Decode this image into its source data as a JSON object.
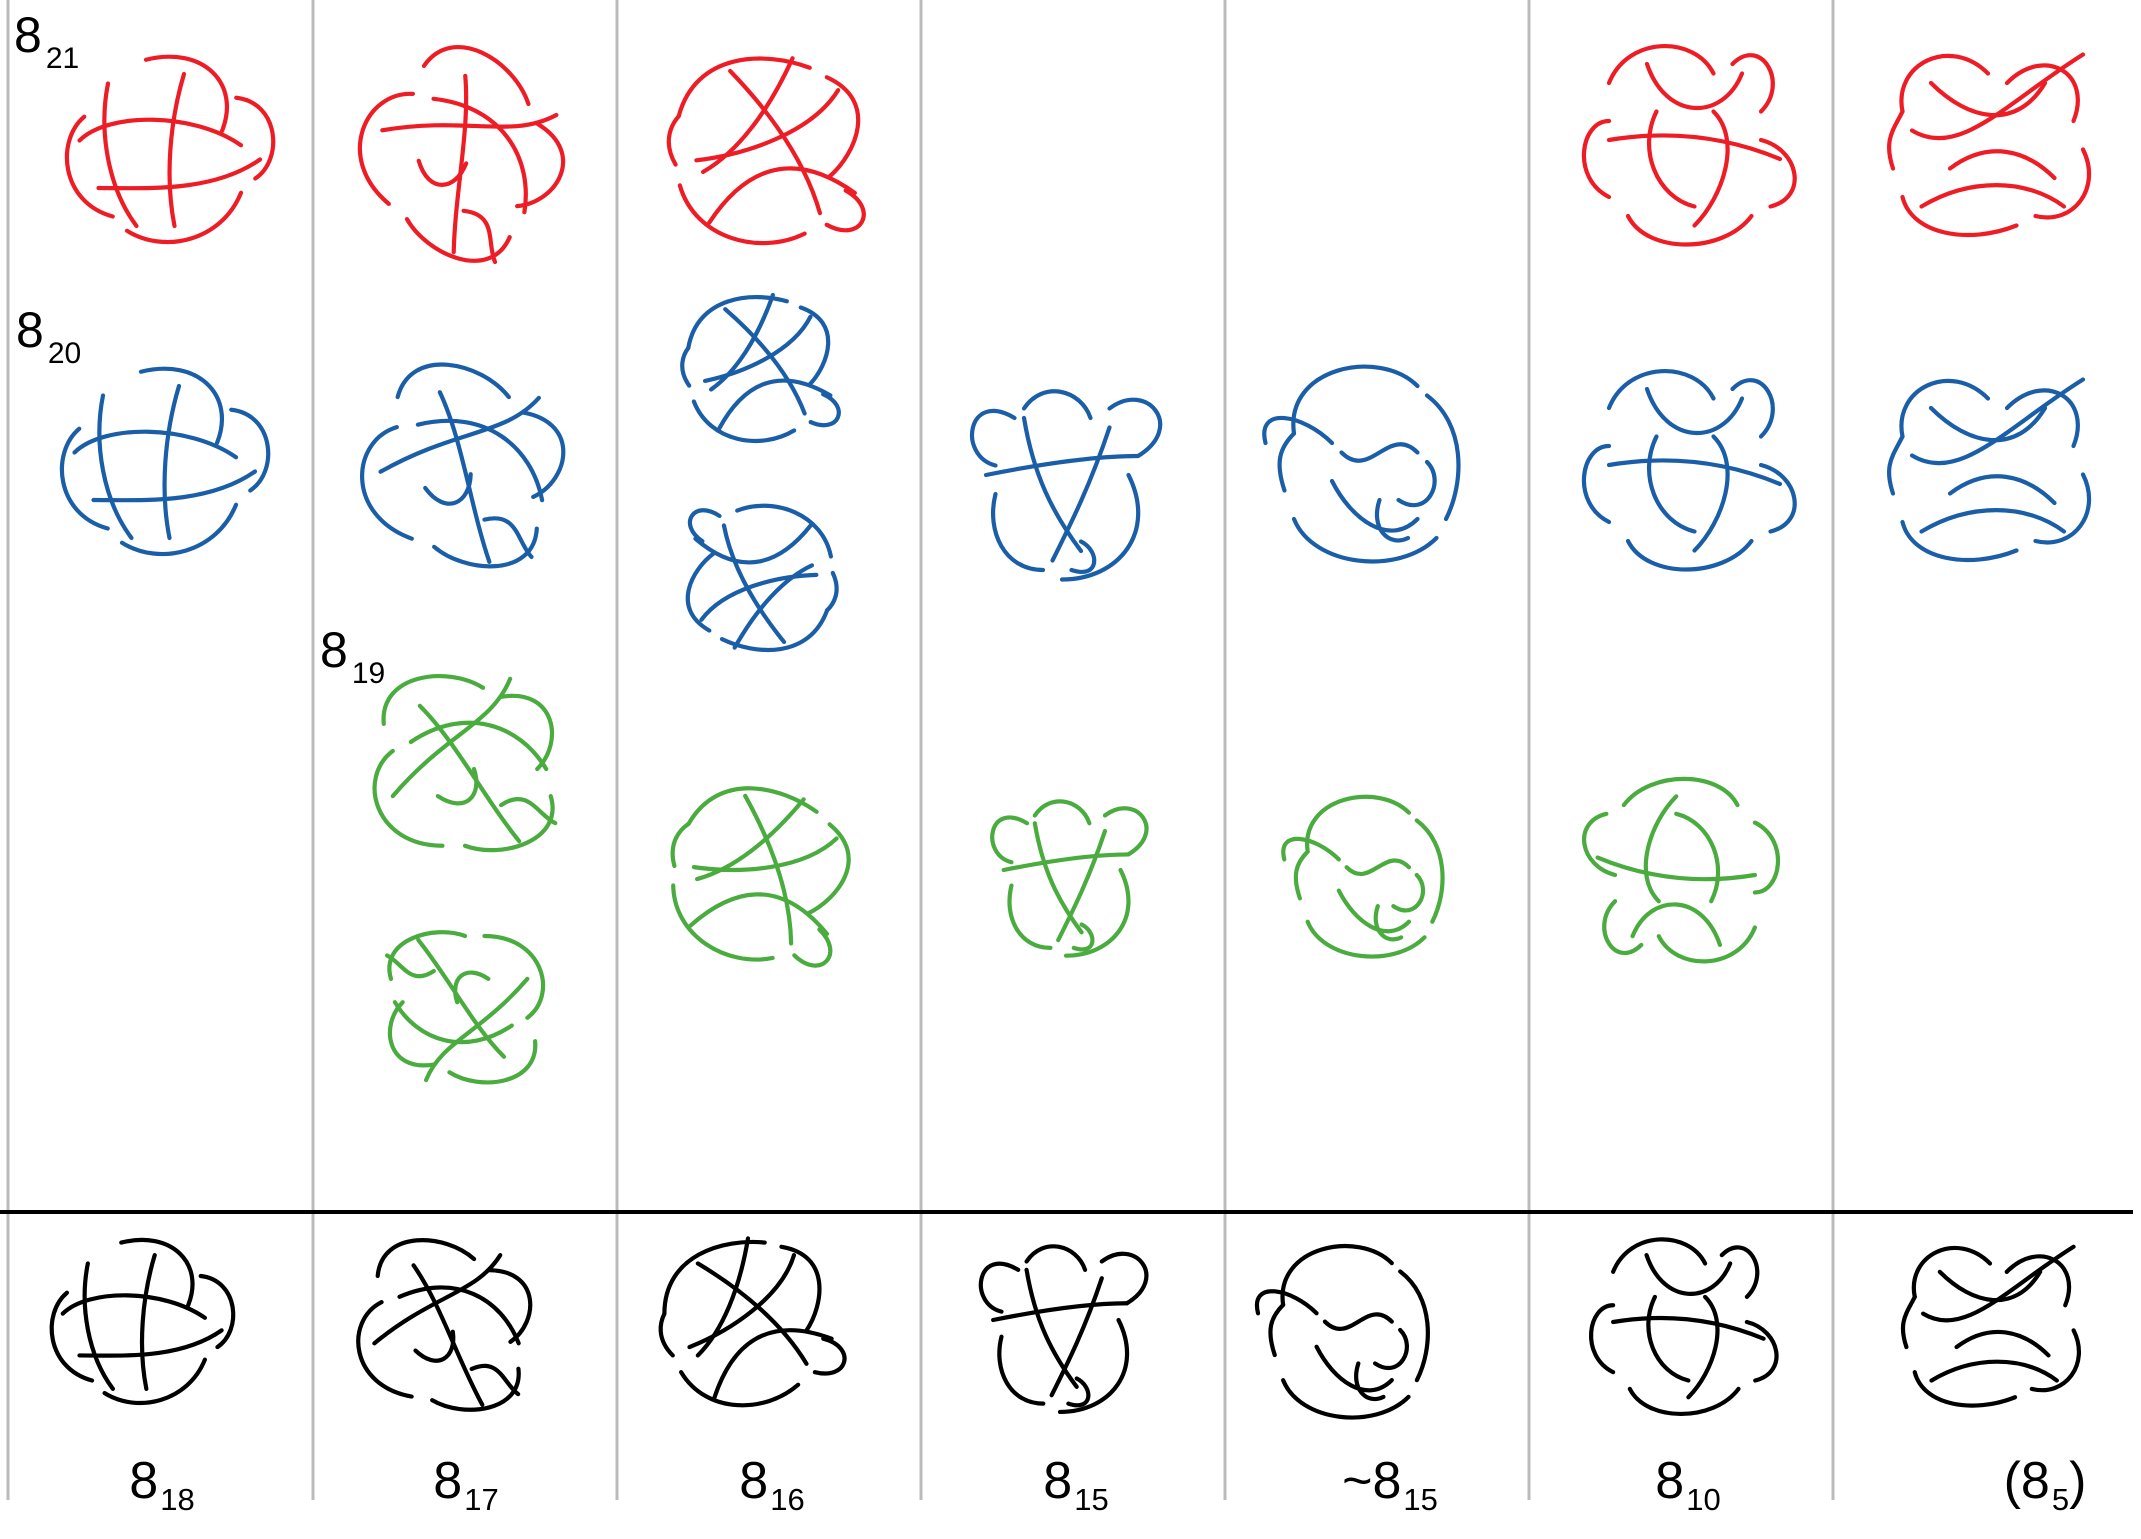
{
  "colors": {
    "red": "#ee1c24",
    "blue": "#1b5ea8",
    "green": "#4aab3e",
    "black": "#000000",
    "divider": "#bbbbbb"
  },
  "columns": [
    {
      "id": "c1",
      "label": {
        "main": "8",
        "sub": "18"
      }
    },
    {
      "id": "c2",
      "label": {
        "main": "8",
        "sub": "17"
      }
    },
    {
      "id": "c3",
      "label": {
        "main": "8",
        "sub": "16"
      }
    },
    {
      "id": "c4",
      "label": {
        "main": "8",
        "sub": "15"
      }
    },
    {
      "id": "c5",
      "label": {
        "main": "~8",
        "sub": "15"
      }
    },
    {
      "id": "c6",
      "label": {
        "main": "8",
        "sub": "10"
      }
    },
    {
      "id": "c7",
      "label": {
        "main": "(8",
        "sub": "5",
        "suffix": ")"
      }
    }
  ],
  "side_labels": [
    {
      "id": "s21",
      "main": "8",
      "sub": "21"
    },
    {
      "id": "s20",
      "main": "8",
      "sub": "20"
    },
    {
      "id": "s19",
      "main": "8",
      "sub": "19"
    }
  ],
  "knots": [
    {
      "id": "k-red-1",
      "color": "red"
    },
    {
      "id": "k-red-2",
      "color": "red"
    },
    {
      "id": "k-red-3",
      "color": "red"
    },
    {
      "id": "k-red-6",
      "color": "red"
    },
    {
      "id": "k-red-7",
      "color": "red"
    },
    {
      "id": "k-blue-1",
      "color": "blue"
    },
    {
      "id": "k-blue-2",
      "color": "blue"
    },
    {
      "id": "k-blue-3a",
      "color": "blue"
    },
    {
      "id": "k-blue-3b",
      "color": "blue"
    },
    {
      "id": "k-blue-4",
      "color": "blue"
    },
    {
      "id": "k-blue-5",
      "color": "blue"
    },
    {
      "id": "k-blue-6",
      "color": "blue"
    },
    {
      "id": "k-blue-7",
      "color": "blue"
    },
    {
      "id": "k-green-2a",
      "color": "green"
    },
    {
      "id": "k-green-2b",
      "color": "green"
    },
    {
      "id": "k-green-3",
      "color": "green"
    },
    {
      "id": "k-green-4",
      "color": "green"
    },
    {
      "id": "k-green-5",
      "color": "green"
    },
    {
      "id": "k-green-6",
      "color": "green"
    },
    {
      "id": "k-black-1",
      "color": "black"
    },
    {
      "id": "k-black-2",
      "color": "black"
    },
    {
      "id": "k-black-3",
      "color": "black"
    },
    {
      "id": "k-black-4",
      "color": "black"
    },
    {
      "id": "k-black-5",
      "color": "black"
    },
    {
      "id": "k-black-6",
      "color": "black"
    },
    {
      "id": "k-black-7",
      "color": "black"
    }
  ]
}
